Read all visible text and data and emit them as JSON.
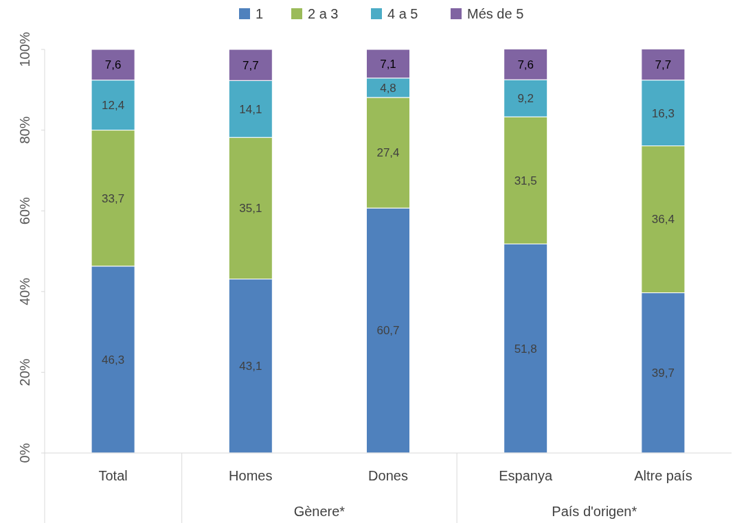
{
  "chart_data": {
    "type": "bar",
    "stacked": true,
    "categories": [
      "Total",
      "Homes",
      "Dones",
      "Espanya",
      "Altre país"
    ],
    "series": [
      {
        "name": "1",
        "color": "#4f81bd",
        "values": [
          46.3,
          43.1,
          60.7,
          51.8,
          39.7
        ],
        "value_labels": [
          "46,3",
          "43,1",
          "60,7",
          "51,8",
          "39,7"
        ]
      },
      {
        "name": "2 a 3",
        "color": "#9bbb59",
        "values": [
          33.7,
          35.1,
          27.4,
          31.5,
          36.4
        ],
        "value_labels": [
          "33,7",
          "35,1",
          "27,4",
          "31,5",
          "36,4"
        ]
      },
      {
        "name": "4 a 5",
        "color": "#4bacc6",
        "values": [
          12.4,
          14.1,
          4.8,
          9.2,
          16.3
        ],
        "value_labels": [
          "12,4",
          "14,1",
          "4,8",
          "9,2",
          "16,3"
        ]
      },
      {
        "name": "Més de 5",
        "color": "#8064a2",
        "values": [
          7.6,
          7.7,
          7.1,
          7.6,
          7.7
        ],
        "value_labels": [
          "7,6",
          "7,7",
          "7,1",
          "7,6",
          "7,7"
        ]
      }
    ],
    "ylim": [
      0,
      100
    ],
    "yticks": [
      {
        "value": 0,
        "label": "0%"
      },
      {
        "value": 20,
        "label": "20%"
      },
      {
        "value": 40,
        "label": "40%"
      },
      {
        "value": 60,
        "label": "60%"
      },
      {
        "value": 80,
        "label": "80%"
      },
      {
        "value": 100,
        "label": "100%"
      }
    ],
    "annotations": [
      "Gènere*",
      "País d'origen*"
    ],
    "legend": "top",
    "grid": false
  }
}
